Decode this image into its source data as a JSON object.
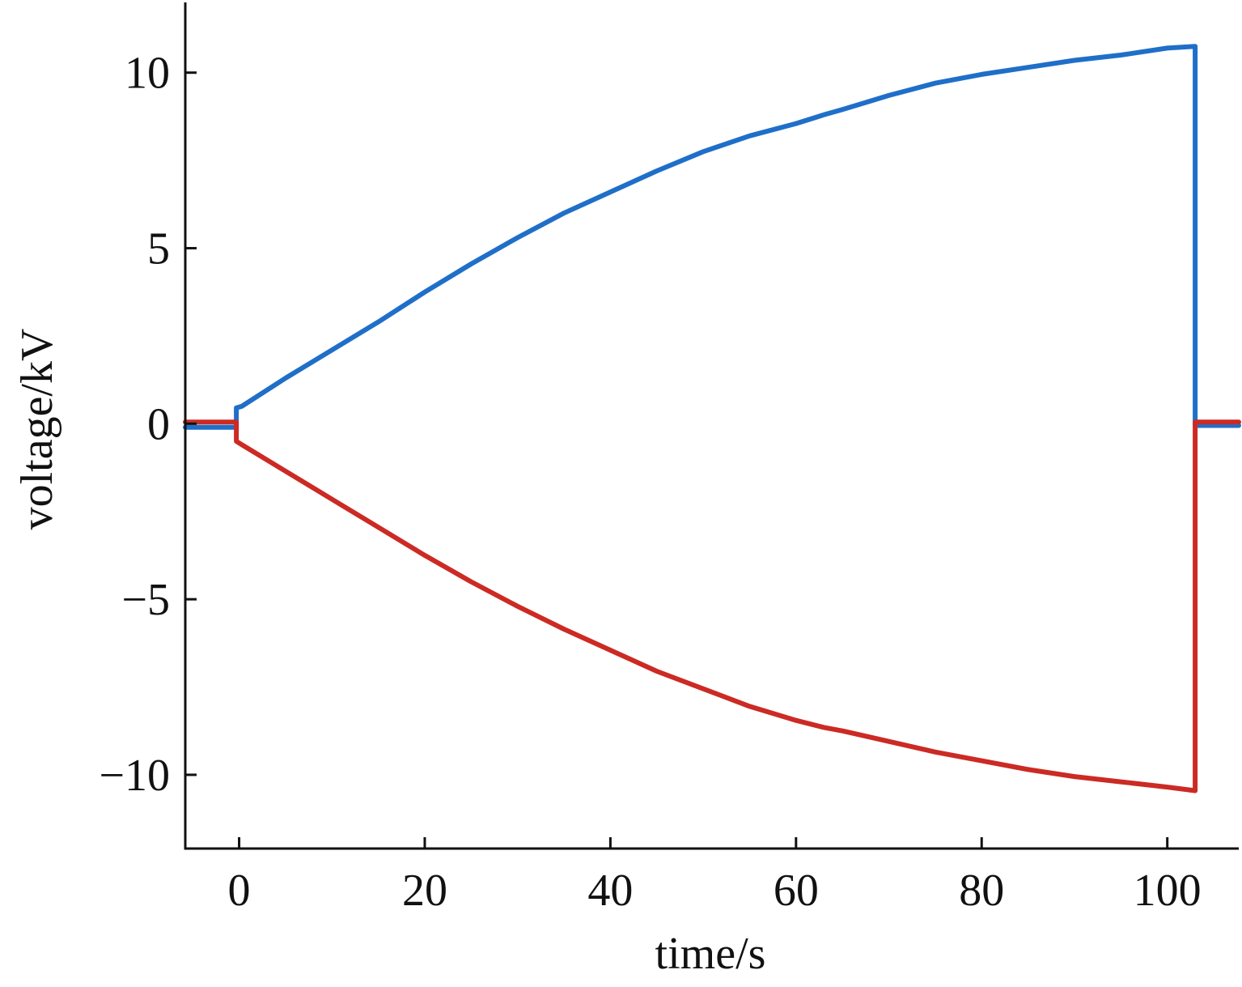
{
  "chart_data": {
    "type": "line",
    "xlabel": "time/s",
    "ylabel": "voltage/kV",
    "xlim": [
      -5.8,
      107.7
    ],
    "ylim": [
      -12.1,
      12.0
    ],
    "xticks": [
      0,
      20,
      40,
      60,
      80,
      100
    ],
    "yticks": [
      -10,
      -5,
      0,
      5,
      10
    ],
    "xtick_labels": [
      "0",
      "20",
      "40",
      "60",
      "80",
      "100"
    ],
    "ytick_labels": [
      "−10",
      "−5",
      "0",
      "5",
      "10"
    ],
    "grid": false,
    "legend": "none",
    "series": [
      {
        "color": "#1f6fc9",
        "x": [
          -5.8,
          -0.3,
          -0.3,
          0.3,
          5,
          10,
          15,
          20,
          25,
          30,
          35,
          40,
          45,
          50,
          55,
          60,
          63,
          65,
          70,
          75,
          80,
          85,
          90,
          95,
          100,
          103,
          103,
          107.7
        ],
        "y": [
          -0.1,
          -0.1,
          0.45,
          0.5,
          1.3,
          2.1,
          2.9,
          3.75,
          4.55,
          5.3,
          6.0,
          6.6,
          7.2,
          7.75,
          8.2,
          8.55,
          8.8,
          8.95,
          9.35,
          9.7,
          9.95,
          10.15,
          10.35,
          10.5,
          10.7,
          10.75,
          -0.05,
          -0.05
        ]
      },
      {
        "color": "#cc2a24",
        "x": [
          -5.8,
          -0.3,
          -0.3,
          0.3,
          5,
          10,
          15,
          20,
          25,
          30,
          35,
          40,
          45,
          50,
          55,
          60,
          63,
          65,
          70,
          75,
          80,
          85,
          90,
          95,
          100,
          103,
          103,
          107.7
        ],
        "y": [
          0.05,
          0.05,
          -0.5,
          -0.6,
          -1.35,
          -2.15,
          -2.95,
          -3.75,
          -4.5,
          -5.2,
          -5.85,
          -6.45,
          -7.05,
          -7.55,
          -8.05,
          -8.45,
          -8.65,
          -8.75,
          -9.05,
          -9.35,
          -9.6,
          -9.85,
          -10.05,
          -10.2,
          -10.35,
          -10.45,
          0.05,
          0.05
        ]
      }
    ]
  }
}
